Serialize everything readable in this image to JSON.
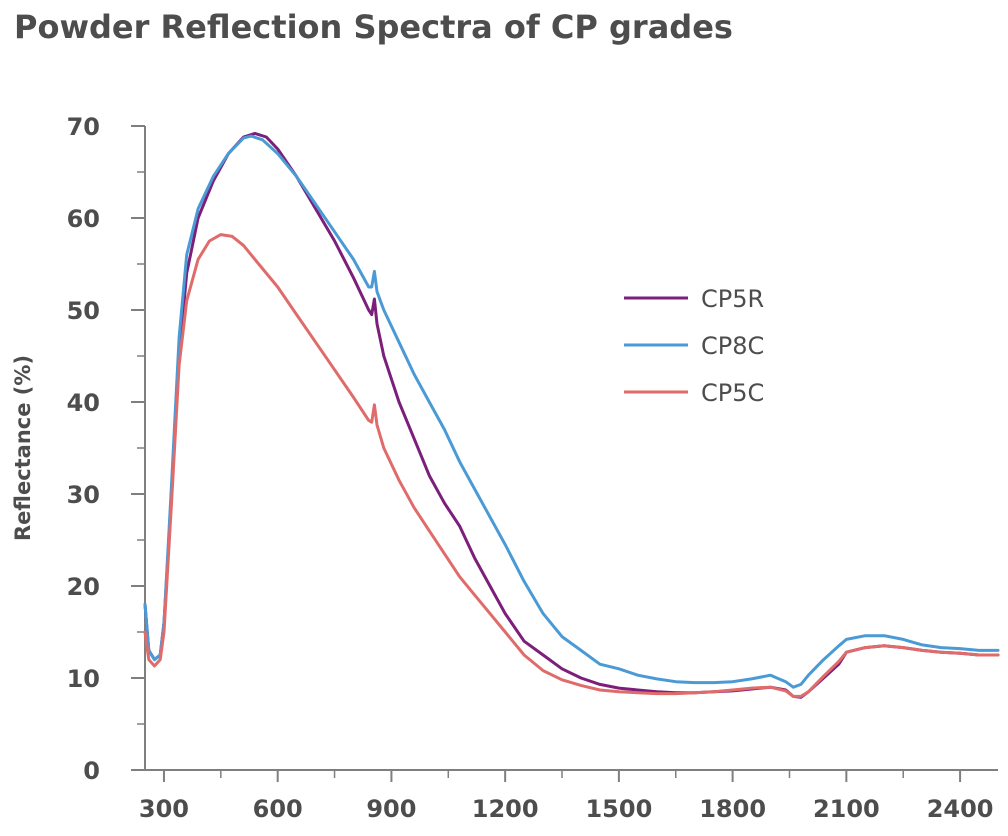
{
  "chart_data": {
    "type": "line",
    "title": "Powder Reflection Spectra of CP grades",
    "xlabel": "",
    "ylabel": "Reflectance (%)",
    "xlim": [
      250,
      2500
    ],
    "ylim": [
      0,
      70
    ],
    "x_ticks": [
      300,
      600,
      900,
      1200,
      1500,
      1800,
      2100,
      2400
    ],
    "y_ticks": [
      0,
      10,
      20,
      30,
      40,
      50,
      60,
      70
    ],
    "grid": false,
    "legend_position": "right",
    "series": [
      {
        "name": "CP5R",
        "color": "#7b1f7a",
        "points": [
          [
            250,
            18
          ],
          [
            260,
            13
          ],
          [
            275,
            12
          ],
          [
            290,
            12.5
          ],
          [
            300,
            16
          ],
          [
            320,
            30
          ],
          [
            340,
            45
          ],
          [
            360,
            54
          ],
          [
            390,
            60
          ],
          [
            430,
            64
          ],
          [
            470,
            67
          ],
          [
            510,
            68.8
          ],
          [
            540,
            69.2
          ],
          [
            570,
            68.8
          ],
          [
            600,
            67.5
          ],
          [
            650,
            64.5
          ],
          [
            700,
            61
          ],
          [
            750,
            57.5
          ],
          [
            800,
            53.5
          ],
          [
            840,
            50
          ],
          [
            848,
            49.5
          ],
          [
            855,
            51.2
          ],
          [
            862,
            48.5
          ],
          [
            880,
            45
          ],
          [
            920,
            40
          ],
          [
            960,
            36
          ],
          [
            1000,
            32
          ],
          [
            1040,
            29
          ],
          [
            1080,
            26.5
          ],
          [
            1120,
            23
          ],
          [
            1160,
            20
          ],
          [
            1200,
            17
          ],
          [
            1250,
            14
          ],
          [
            1300,
            12.5
          ],
          [
            1350,
            11
          ],
          [
            1400,
            10
          ],
          [
            1450,
            9.3
          ],
          [
            1500,
            8.9
          ],
          [
            1550,
            8.7
          ],
          [
            1600,
            8.5
          ],
          [
            1650,
            8.4
          ],
          [
            1700,
            8.4
          ],
          [
            1750,
            8.5
          ],
          [
            1800,
            8.6
          ],
          [
            1850,
            8.8
          ],
          [
            1900,
            9.0
          ],
          [
            1940,
            8.7
          ],
          [
            1960,
            8.0
          ],
          [
            1980,
            7.9
          ],
          [
            2000,
            8.5
          ],
          [
            2040,
            10
          ],
          [
            2080,
            11.5
          ],
          [
            2100,
            12.8
          ],
          [
            2150,
            13.3
          ],
          [
            2200,
            13.5
          ],
          [
            2250,
            13.3
          ],
          [
            2300,
            13
          ],
          [
            2350,
            12.8
          ],
          [
            2400,
            12.7
          ],
          [
            2450,
            12.5
          ],
          [
            2500,
            12.5
          ]
        ]
      },
      {
        "name": "CP8C",
        "color": "#4a9ad6",
        "points": [
          [
            250,
            18
          ],
          [
            260,
            13
          ],
          [
            275,
            12
          ],
          [
            290,
            12.5
          ],
          [
            300,
            16
          ],
          [
            320,
            31
          ],
          [
            340,
            47
          ],
          [
            360,
            56
          ],
          [
            390,
            61
          ],
          [
            430,
            64.5
          ],
          [
            470,
            67
          ],
          [
            510,
            68.7
          ],
          [
            530,
            68.9
          ],
          [
            560,
            68.5
          ],
          [
            600,
            67
          ],
          [
            650,
            64.5
          ],
          [
            700,
            61.5
          ],
          [
            750,
            58.5
          ],
          [
            800,
            55.5
          ],
          [
            840,
            52.5
          ],
          [
            848,
            52.5
          ],
          [
            855,
            54.2
          ],
          [
            862,
            52
          ],
          [
            880,
            50
          ],
          [
            920,
            46.5
          ],
          [
            960,
            43
          ],
          [
            1000,
            40
          ],
          [
            1040,
            37
          ],
          [
            1080,
            33.5
          ],
          [
            1120,
            30.5
          ],
          [
            1160,
            27.5
          ],
          [
            1200,
            24.5
          ],
          [
            1250,
            20.5
          ],
          [
            1300,
            17
          ],
          [
            1350,
            14.5
          ],
          [
            1400,
            13
          ],
          [
            1450,
            11.5
          ],
          [
            1500,
            11
          ],
          [
            1550,
            10.3
          ],
          [
            1600,
            9.9
          ],
          [
            1650,
            9.6
          ],
          [
            1700,
            9.5
          ],
          [
            1750,
            9.5
          ],
          [
            1800,
            9.6
          ],
          [
            1850,
            9.9
          ],
          [
            1900,
            10.3
          ],
          [
            1940,
            9.6
          ],
          [
            1960,
            9.0
          ],
          [
            1980,
            9.3
          ],
          [
            2000,
            10.3
          ],
          [
            2040,
            12
          ],
          [
            2080,
            13.5
          ],
          [
            2100,
            14.2
          ],
          [
            2150,
            14.6
          ],
          [
            2200,
            14.6
          ],
          [
            2250,
            14.2
          ],
          [
            2300,
            13.6
          ],
          [
            2350,
            13.3
          ],
          [
            2400,
            13.2
          ],
          [
            2450,
            13
          ],
          [
            2500,
            13
          ]
        ]
      },
      {
        "name": "CP5C",
        "color": "#e06b6b",
        "points": [
          [
            250,
            15
          ],
          [
            260,
            12
          ],
          [
            275,
            11.3
          ],
          [
            290,
            12
          ],
          [
            300,
            15
          ],
          [
            320,
            29
          ],
          [
            340,
            44
          ],
          [
            360,
            51
          ],
          [
            390,
            55.5
          ],
          [
            420,
            57.5
          ],
          [
            450,
            58.2
          ],
          [
            480,
            58
          ],
          [
            510,
            57
          ],
          [
            550,
            55
          ],
          [
            600,
            52.5
          ],
          [
            650,
            49.5
          ],
          [
            700,
            46.5
          ],
          [
            750,
            43.5
          ],
          [
            800,
            40.5
          ],
          [
            840,
            38
          ],
          [
            848,
            37.8
          ],
          [
            855,
            39.7
          ],
          [
            862,
            37.5
          ],
          [
            880,
            35
          ],
          [
            920,
            31.5
          ],
          [
            960,
            28.5
          ],
          [
            1000,
            26
          ],
          [
            1040,
            23.5
          ],
          [
            1080,
            21
          ],
          [
            1120,
            19
          ],
          [
            1160,
            17
          ],
          [
            1200,
            15
          ],
          [
            1250,
            12.5
          ],
          [
            1300,
            10.8
          ],
          [
            1350,
            9.8
          ],
          [
            1400,
            9.2
          ],
          [
            1450,
            8.7
          ],
          [
            1500,
            8.5
          ],
          [
            1550,
            8.4
          ],
          [
            1600,
            8.3
          ],
          [
            1650,
            8.3
          ],
          [
            1700,
            8.4
          ],
          [
            1750,
            8.5
          ],
          [
            1800,
            8.7
          ],
          [
            1850,
            8.9
          ],
          [
            1900,
            9.0
          ],
          [
            1940,
            8.6
          ],
          [
            1960,
            8.0
          ],
          [
            1980,
            8.0
          ],
          [
            2000,
            8.5
          ],
          [
            2040,
            10.2
          ],
          [
            2080,
            11.8
          ],
          [
            2100,
            12.8
          ],
          [
            2150,
            13.3
          ],
          [
            2200,
            13.5
          ],
          [
            2250,
            13.3
          ],
          [
            2300,
            13
          ],
          [
            2350,
            12.8
          ],
          [
            2400,
            12.7
          ],
          [
            2450,
            12.5
          ],
          [
            2500,
            12.5
          ]
        ]
      }
    ]
  }
}
